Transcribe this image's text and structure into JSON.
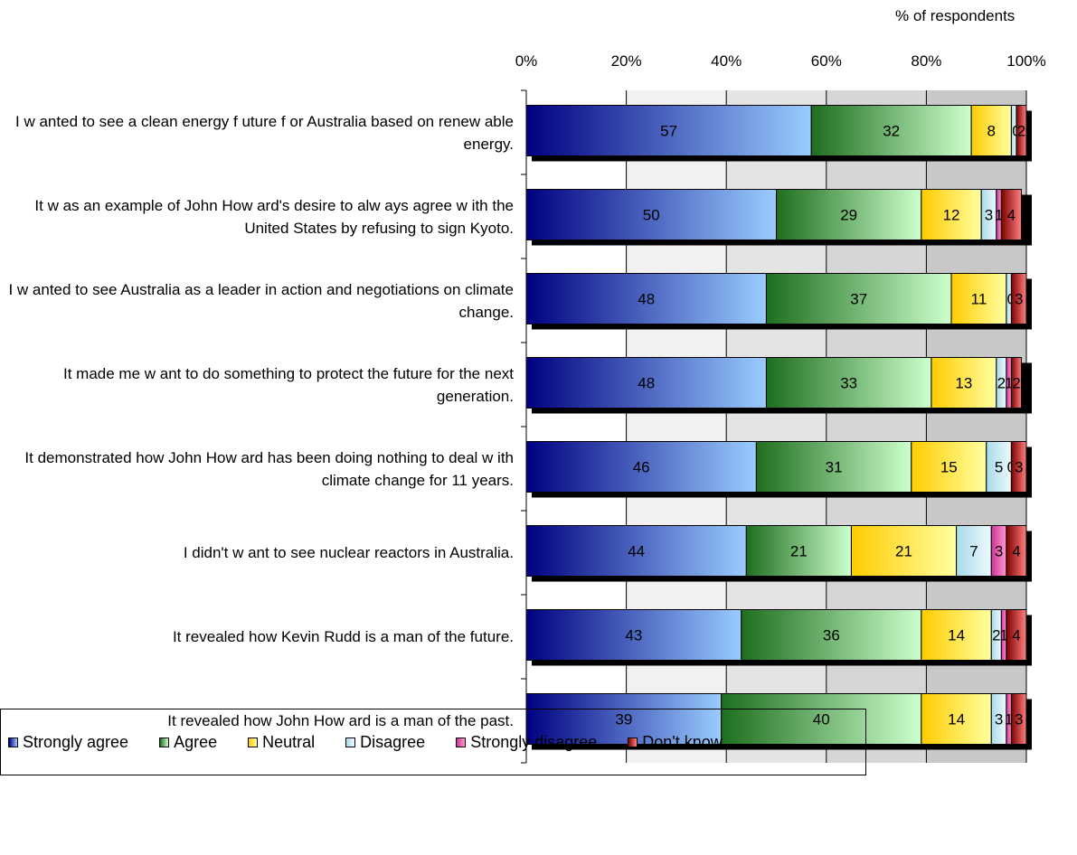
{
  "chart_data": {
    "type": "bar",
    "orientation": "horizontal-stacked-100",
    "unit_label": "% of respondents",
    "xlim": [
      0,
      100
    ],
    "x_ticks": [
      "0%",
      "20%",
      "40%",
      "60%",
      "80%",
      "100%"
    ],
    "grid": true,
    "legend_position": "bottom",
    "categories": [
      "I w anted to see a clean energy f uture f or Australia based on renew able energy.",
      "It w as an example of John How ard's desire to alw ays agree w ith the United States by refusing to sign Kyoto.",
      "I w anted to see Australia as a leader in action and negotiations on climate change.",
      "It made me w ant to do something to protect the future for the next generation.",
      "It demonstrated how  John How ard has been doing nothing to deal w ith climate change for 11 years.",
      "I didn't w ant to see nuclear reactors in Australia.",
      "It revealed how  Kevin Rudd is a man of the future.",
      "It revealed how  John How ard is a man of the past."
    ],
    "series": [
      {
        "name": "Strongly agree",
        "color_dark": "#000080",
        "color_light": "#99ccff",
        "values": [
          57,
          50,
          48,
          48,
          46,
          44,
          43,
          39
        ]
      },
      {
        "name": "Agree",
        "color_dark": "#1e6e1e",
        "color_light": "#ccffcc",
        "values": [
          32,
          29,
          37,
          33,
          31,
          21,
          36,
          40
        ]
      },
      {
        "name": "Neutral",
        "color_dark": "#ffcc00",
        "color_light": "#ffffa0",
        "values": [
          8,
          12,
          11,
          13,
          15,
          21,
          14,
          14
        ]
      },
      {
        "name": "Disagree",
        "color_dark": "#a6dbe8",
        "color_light": "#eef9ff",
        "values": [
          1,
          3,
          1,
          2,
          5,
          7,
          2,
          3
        ]
      },
      {
        "name": "Strongly disagree",
        "color_dark": "#cc3399",
        "color_light": "#ff99cc",
        "values": [
          0,
          1,
          0,
          1,
          0,
          3,
          1,
          1
        ]
      },
      {
        "name": "Don't know",
        "color_dark": "#800000",
        "color_light": "#ff8080",
        "values": [
          2,
          4,
          3,
          2,
          3,
          4,
          4,
          3
        ]
      }
    ],
    "data_labels": [
      [
        "57",
        "32",
        "8",
        "",
        "0",
        "2"
      ],
      [
        "50",
        "29",
        "12",
        "3",
        "1",
        "4"
      ],
      [
        "48",
        "37",
        "11",
        "",
        "0",
        "3"
      ],
      [
        "48",
        "33",
        "13",
        "2",
        "1",
        "2"
      ],
      [
        "46",
        "31",
        "15",
        "5",
        "0",
        "3"
      ],
      [
        "44",
        "21",
        "21",
        "7",
        "3",
        "4"
      ],
      [
        "43",
        "36",
        "14",
        "2",
        "1",
        "4"
      ],
      [
        "39",
        "40",
        "14",
        "3",
        "1",
        "3"
      ]
    ]
  }
}
